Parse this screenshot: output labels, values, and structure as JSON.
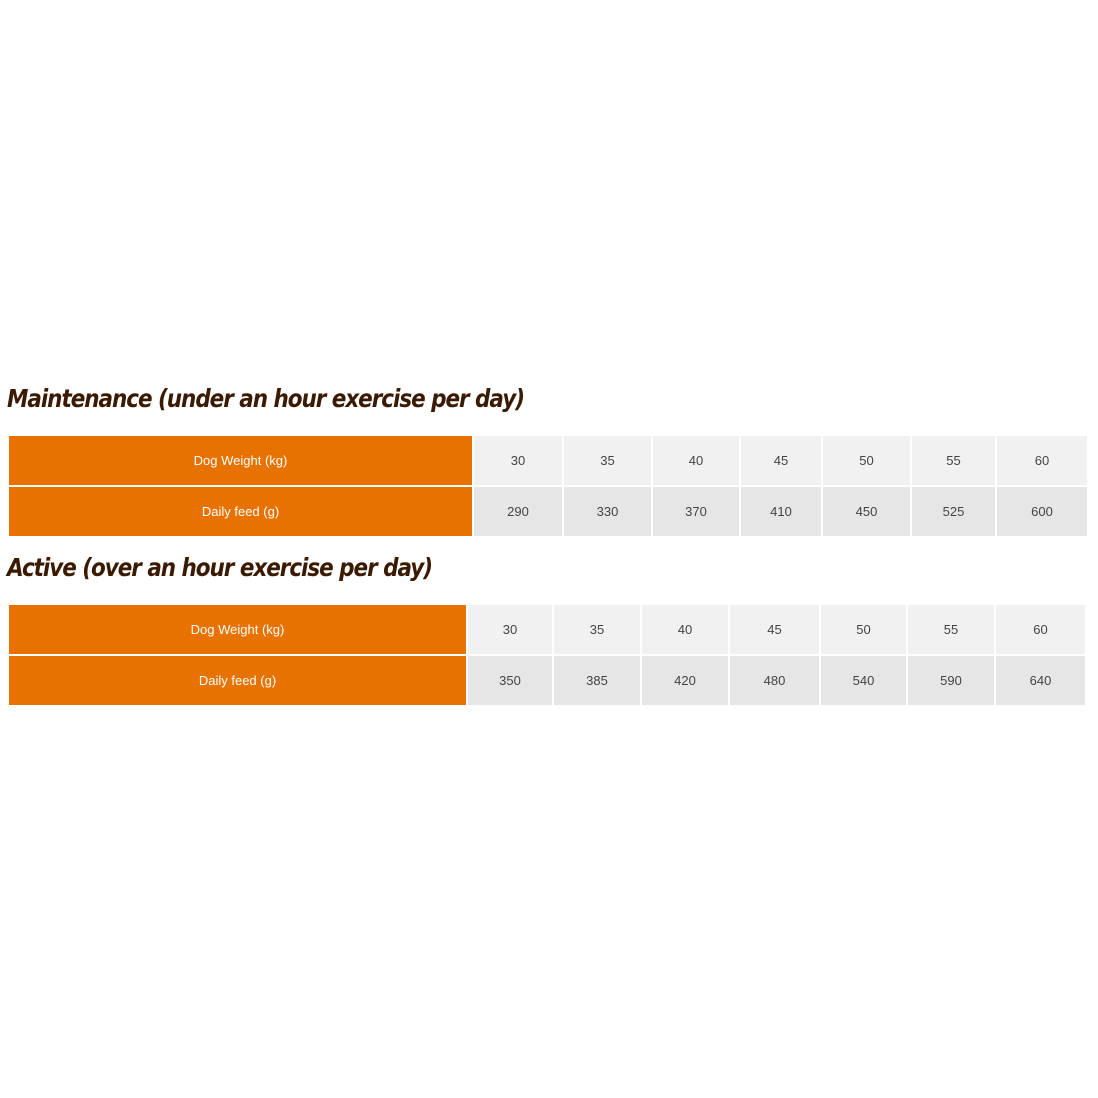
{
  "sections": [
    {
      "title": "Maintenance (under an hour exercise per day)",
      "rows": [
        {
          "label": "Dog Weight (kg)",
          "values": [
            "30",
            "35",
            "40",
            "45",
            "50",
            "55",
            "60"
          ]
        },
        {
          "label": "Daily feed (g)",
          "values": [
            "290",
            "330",
            "370",
            "410",
            "450",
            "525",
            "600"
          ]
        }
      ]
    },
    {
      "title": "Active (over an hour exercise per day)",
      "rows": [
        {
          "label": "Dog Weight (kg)",
          "values": [
            "30",
            "35",
            "40",
            "45",
            "50",
            "55",
            "60"
          ]
        },
        {
          "label": "Daily feed (g)",
          "values": [
            "350",
            "385",
            "420",
            "480",
            "540",
            "590",
            "640"
          ]
        }
      ]
    }
  ],
  "colors": {
    "label_bg": "#e87200",
    "title": "#3b1a02",
    "row_light": "#f1f1f1",
    "row_dark": "#e6e6e6"
  }
}
